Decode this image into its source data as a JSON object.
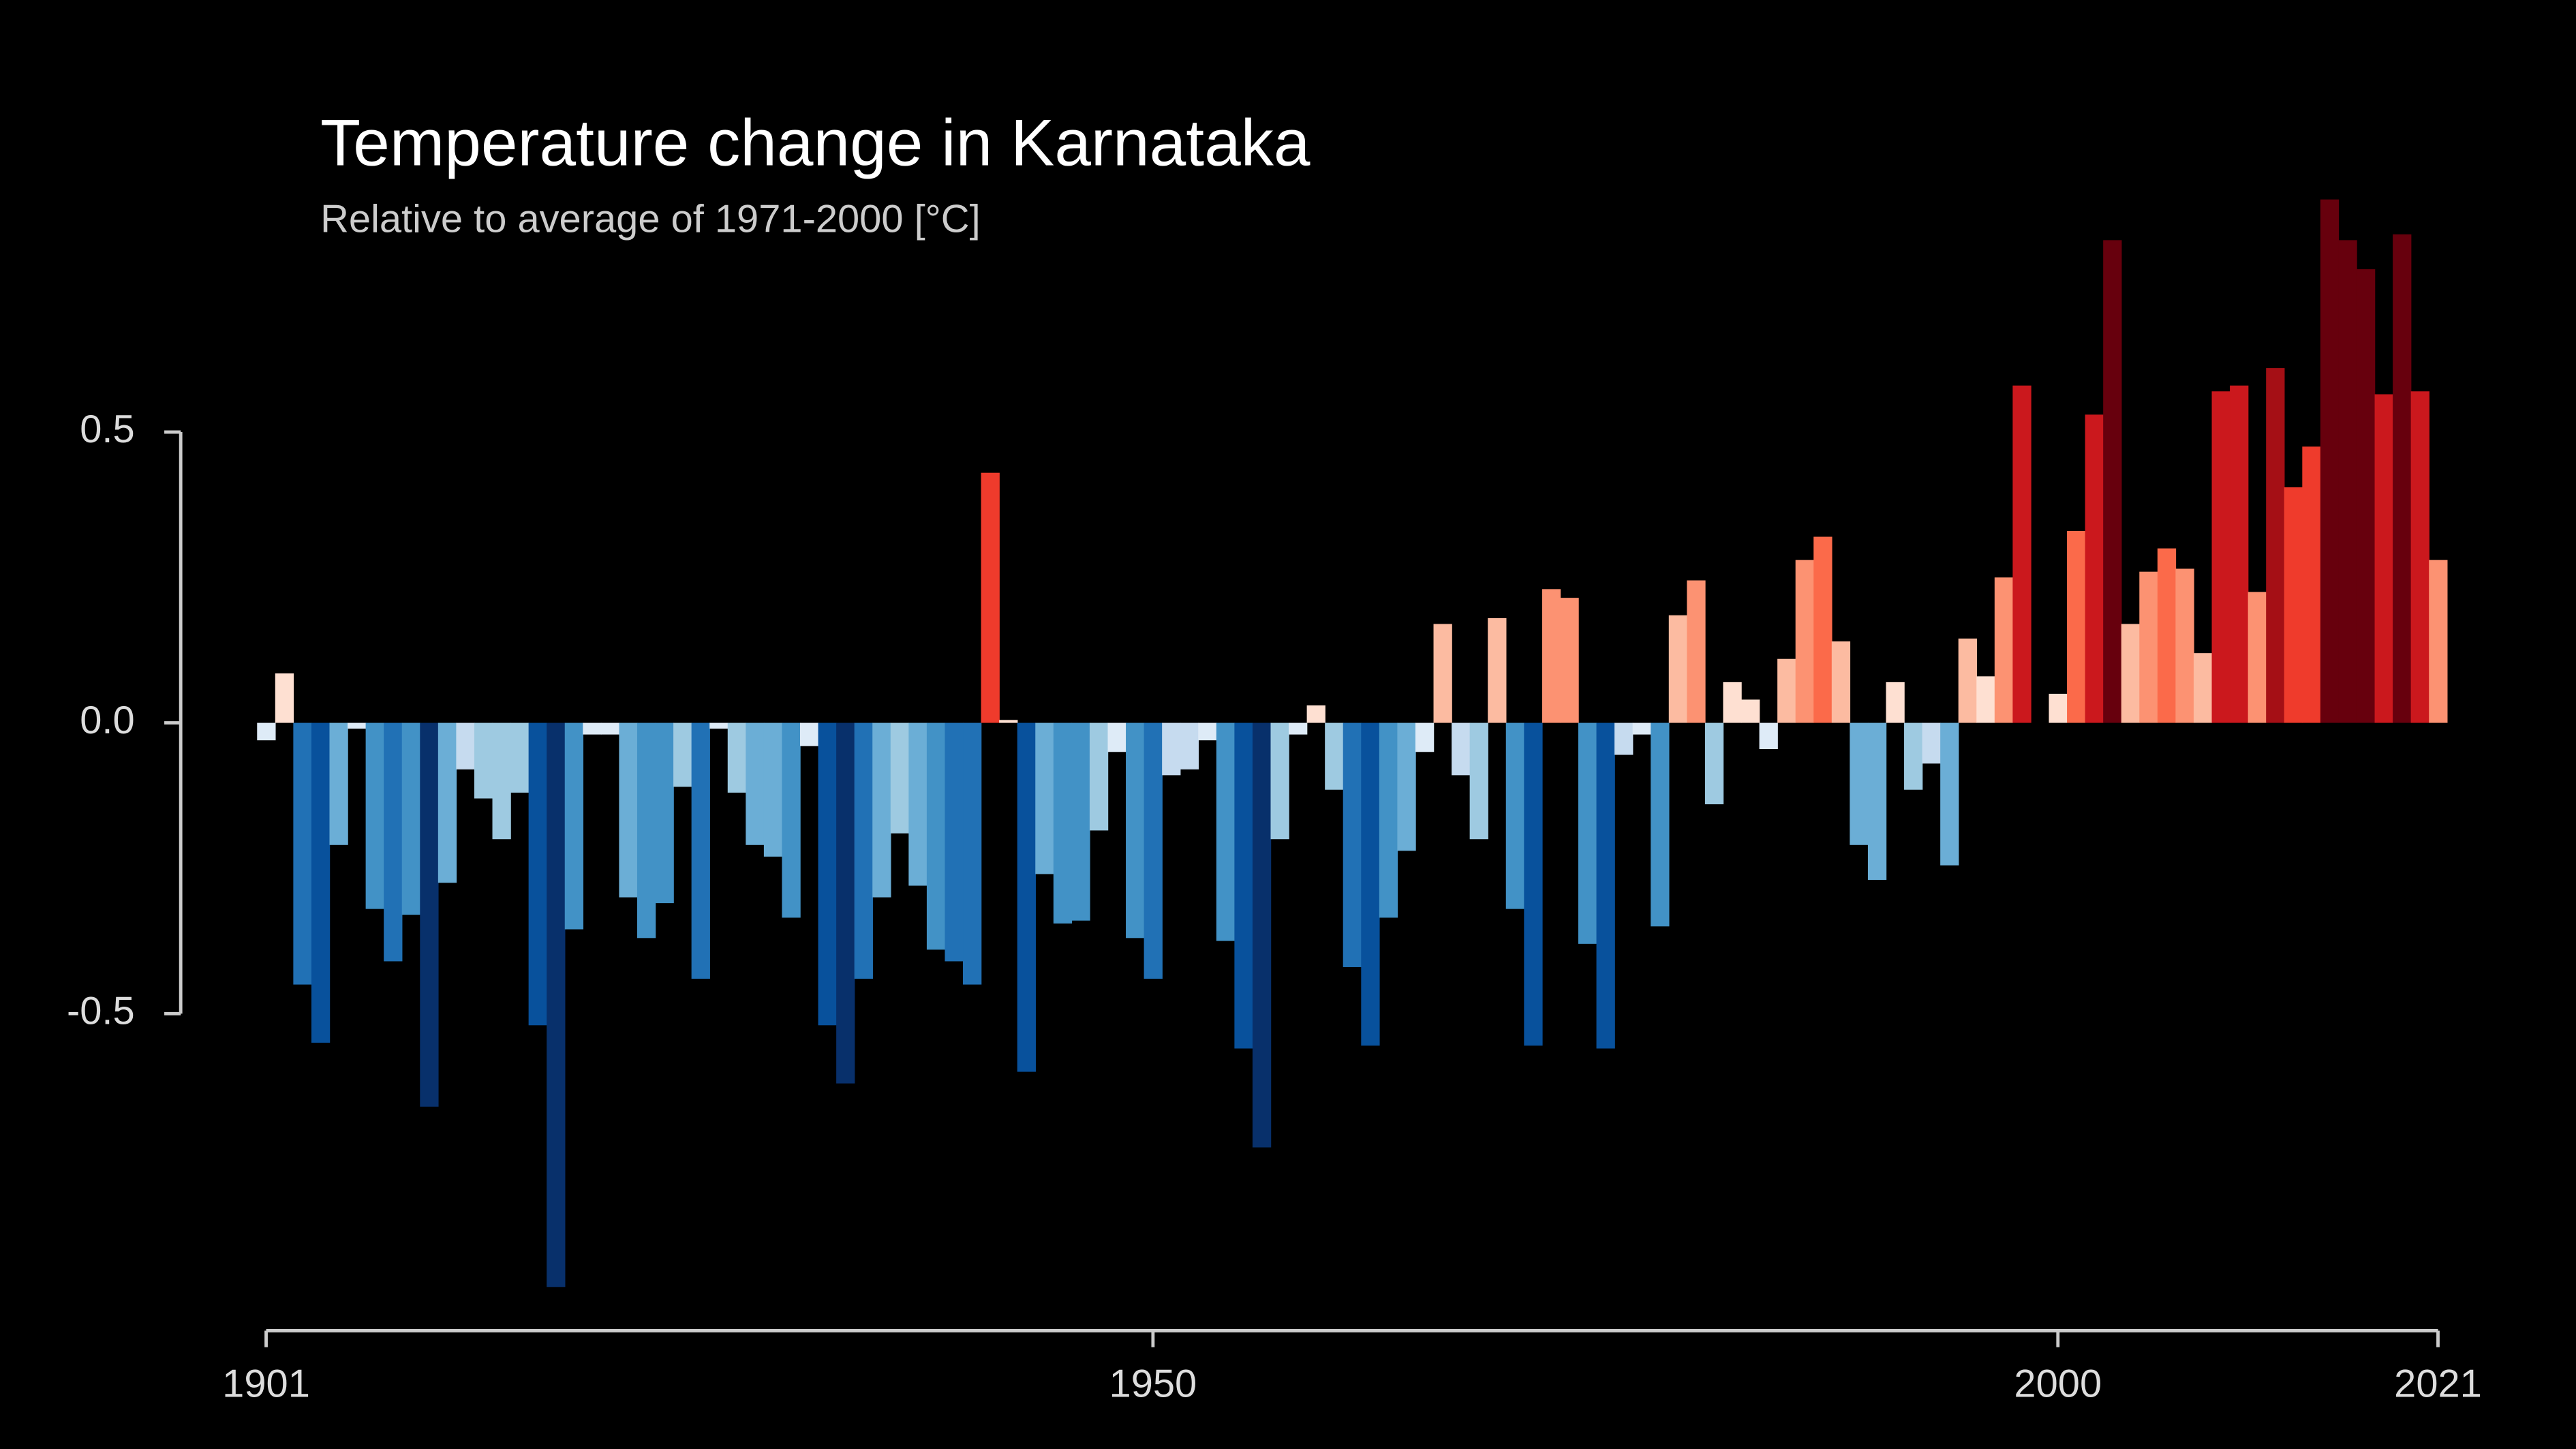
{
  "chart_data": {
    "type": "bar",
    "title": "Temperature change in Karnataka",
    "subtitle": "Relative to average of 1971-2000  [°C]",
    "x": [
      1901,
      1902,
      1903,
      1904,
      1905,
      1906,
      1907,
      1908,
      1909,
      1910,
      1911,
      1912,
      1913,
      1914,
      1915,
      1916,
      1917,
      1918,
      1919,
      1920,
      1921,
      1922,
      1923,
      1924,
      1925,
      1926,
      1927,
      1928,
      1929,
      1930,
      1931,
      1932,
      1933,
      1934,
      1935,
      1936,
      1937,
      1938,
      1939,
      1940,
      1941,
      1942,
      1943,
      1944,
      1945,
      1946,
      1947,
      1948,
      1949,
      1950,
      1951,
      1952,
      1953,
      1954,
      1955,
      1956,
      1957,
      1958,
      1959,
      1960,
      1961,
      1962,
      1963,
      1964,
      1965,
      1966,
      1967,
      1968,
      1969,
      1970,
      1971,
      1972,
      1973,
      1974,
      1975,
      1976,
      1977,
      1978,
      1979,
      1980,
      1981,
      1982,
      1983,
      1984,
      1985,
      1986,
      1987,
      1988,
      1989,
      1990,
      1991,
      1992,
      1993,
      1994,
      1995,
      1996,
      1997,
      1998,
      1999,
      2000,
      2001,
      2002,
      2003,
      2004,
      2005,
      2006,
      2007,
      2008,
      2009,
      2010,
      2011,
      2012,
      2013,
      2014,
      2015,
      2016,
      2017,
      2018,
      2019,
      2020,
      2021
    ],
    "values": [
      -0.03,
      0.085,
      -0.45,
      -0.55,
      -0.21,
      -0.01,
      -0.32,
      -0.41,
      -0.33,
      -0.66,
      -0.275,
      -0.08,
      -0.13,
      -0.2,
      -0.12,
      -0.52,
      -0.97,
      -0.355,
      -0.02,
      -0.02,
      -0.3,
      -0.37,
      -0.31,
      -0.11,
      -0.44,
      -0.01,
      -0.12,
      -0.21,
      -0.23,
      -0.335,
      -0.04,
      -0.52,
      -0.62,
      -0.44,
      -0.3,
      -0.19,
      -0.28,
      -0.39,
      -0.41,
      -0.45,
      0.43,
      0.005,
      -0.6,
      -0.26,
      -0.345,
      -0.34,
      -0.185,
      -0.05,
      -0.37,
      -0.44,
      -0.09,
      -0.08,
      -0.03,
      -0.375,
      -0.56,
      -0.73,
      -0.2,
      -0.02,
      0.03,
      -0.115,
      -0.42,
      -0.555,
      -0.335,
      -0.22,
      -0.05,
      0.17,
      -0.09,
      -0.2,
      0.18,
      -0.32,
      -0.555,
      0.23,
      0.215,
      -0.38,
      -0.56,
      -0.055,
      -0.02,
      -0.35,
      0.185,
      0.245,
      -0.14,
      0.07,
      0.04,
      -0.045,
      0.11,
      0.28,
      0.32,
      0.14,
      -0.21,
      -0.27,
      0.07,
      -0.115,
      -0.07,
      -0.245,
      0.145,
      0.08,
      0.25,
      0.58,
      0,
      0.05,
      0.33,
      0.53,
      0.83,
      0.17,
      0.26,
      0.3,
      0.265,
      0.12,
      0.57,
      0.58,
      0.225,
      0.61,
      0.405,
      0.475,
      0.9,
      0.83,
      0.78,
      0.565,
      0.84,
      0.57,
      0.28
    ],
    "colors": [
      "#deebf7",
      "#fee0d2",
      "#2171b5",
      "#08519c",
      "#6baed6",
      "#deebf7",
      "#4292c6",
      "#2171b5",
      "#4292c6",
      "#08306b",
      "#6baed6",
      "#c6dbef",
      "#9ecae1",
      "#9ecae1",
      "#9ecae1",
      "#08519c",
      "#08306b",
      "#4292c6",
      "#deebf7",
      "#deebf7",
      "#6baed6",
      "#4292c6",
      "#4292c6",
      "#9ecae1",
      "#2171b5",
      "#deebf7",
      "#9ecae1",
      "#6baed6",
      "#6baed6",
      "#4292c6",
      "#deebf7",
      "#08519c",
      "#08306b",
      "#2171b5",
      "#6baed6",
      "#9ecae1",
      "#6baed6",
      "#4292c6",
      "#2171b5",
      "#2171b5",
      "#ef3b2c",
      "#fee0d2",
      "#08519c",
      "#6baed6",
      "#4292c6",
      "#4292c6",
      "#9ecae1",
      "#deebf7",
      "#4292c6",
      "#2171b5",
      "#c6dbef",
      "#c6dbef",
      "#deebf7",
      "#4292c6",
      "#08519c",
      "#08306b",
      "#9ecae1",
      "#deebf7",
      "#fee0d2",
      "#9ecae1",
      "#2171b5",
      "#08519c",
      "#4292c6",
      "#6baed6",
      "#deebf7",
      "#fcbba1",
      "#c6dbef",
      "#9ecae1",
      "#fcbba1",
      "#4292c6",
      "#08519c",
      "#fc9272",
      "#fc9272",
      "#4292c6",
      "#08519c",
      "#c6dbef",
      "#deebf7",
      "#4292c6",
      "#fcbba1",
      "#fc9272",
      "#9ecae1",
      "#fee0d2",
      "#fee0d2",
      "#deebf7",
      "#fcbba1",
      "#fc9272",
      "#fb6a4a",
      "#fcbba1",
      "#6baed6",
      "#6baed6",
      "#fee0d2",
      "#9ecae1",
      "#c6dbef",
      "#6baed6",
      "#fcbba1",
      "#fee0d2",
      "#fc9272",
      "#cb181d",
      "#fee0d2",
      "#fee0d2",
      "#fb6a4a",
      "#cb181d",
      "#67000d",
      "#fcbba1",
      "#fc9272",
      "#fb6a4a",
      "#fc9272",
      "#fcbba1",
      "#cb181d",
      "#cb181d",
      "#fc9272",
      "#a50f15",
      "#ef3b2c",
      "#ef3b2c",
      "#67000d",
      "#67000d",
      "#67000d",
      "#cb181d",
      "#67000d",
      "#cb181d",
      "#fc9272"
    ],
    "xlim": [
      1901,
      2021
    ],
    "xticks": [
      1901,
      1950,
      2000,
      2021
    ],
    "ylim": [
      -1,
      1
    ],
    "yticks": [
      {
        "value": -0.5,
        "label": "-0.5"
      },
      {
        "value": 0,
        "label": "0.0"
      },
      0.5
    ],
    "grid": false
  }
}
